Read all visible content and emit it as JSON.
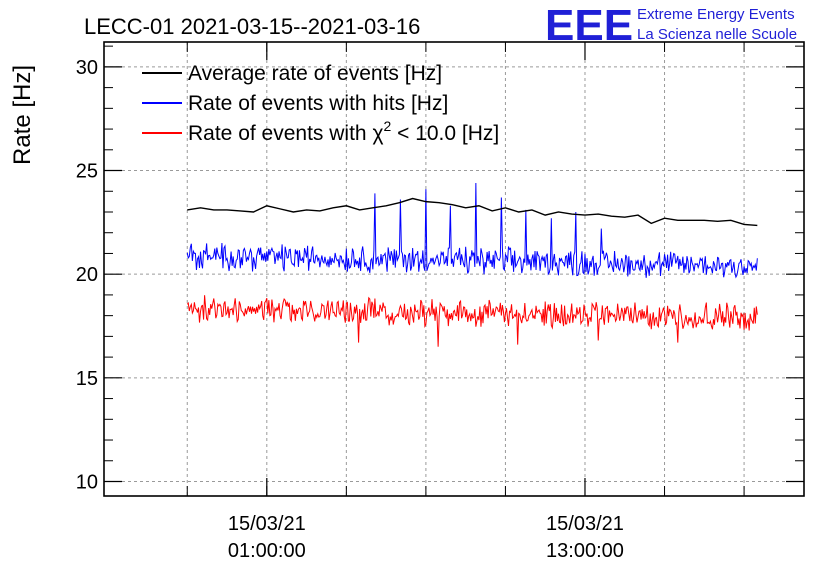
{
  "chart_data": {
    "type": "line",
    "title": "LECC-01 2021-03-15--2021-03-16",
    "ylabel": "Rate [Hz]",
    "xlabel": "",
    "ylim": [
      9.3,
      31.2
    ],
    "yticks": [
      10,
      15,
      20,
      25,
      30
    ],
    "grid": true,
    "legend_position": "top-left",
    "x_tick_labels": [
      {
        "date": "15/03/21",
        "time": "01:00:00"
      },
      {
        "date": "15/03/21",
        "time": "13:00:00"
      }
    ],
    "series": [
      {
        "name": "Average rate of events [Hz]",
        "color": "#000000",
        "x_hours": [
          -2.0,
          -1.5,
          -1.0,
          -0.5,
          0.0,
          0.5,
          1.0,
          1.5,
          2.0,
          2.5,
          3.0,
          3.5,
          4.0,
          4.5,
          5.0,
          5.5,
          6.0,
          6.5,
          7.0,
          7.5,
          8.0,
          8.5,
          9.0,
          9.5,
          10.0,
          10.5,
          11.0,
          11.5,
          12.0,
          12.5,
          13.0,
          13.5,
          14.0,
          14.5,
          15.0,
          15.5,
          16.0,
          16.5,
          17.0,
          17.5,
          18.0,
          18.5,
          19.0,
          19.5
        ],
        "values": [
          23.1,
          23.2,
          23.1,
          23.1,
          23.05,
          23.0,
          23.3,
          23.15,
          23.0,
          23.1,
          23.05,
          23.2,
          23.3,
          23.1,
          23.2,
          23.3,
          23.45,
          23.65,
          23.5,
          23.45,
          23.35,
          23.2,
          23.3,
          23.05,
          23.2,
          23.0,
          23.1,
          22.85,
          23.0,
          22.9,
          22.85,
          22.9,
          22.8,
          22.75,
          22.85,
          22.45,
          22.7,
          22.6,
          22.6,
          22.6,
          22.55,
          22.6,
          22.4,
          22.35
        ]
      },
      {
        "name": "Rate of events with hits [Hz]",
        "color": "#0000ff",
        "x_start_hours": -2.0,
        "x_end_hours": 19.5,
        "mean": 20.9,
        "mean_end": 20.4,
        "noise": 0.5,
        "samples": 560,
        "spike_values": [
          23.9,
          23.6,
          24.1,
          23.3,
          24.4,
          23.7,
          23.1,
          22.7,
          23.0,
          22.2
        ]
      },
      {
        "name": "Rate of events with χ² < 10.0 [Hz]",
        "color": "#ff0000",
        "x_start_hours": -2.0,
        "x_end_hours": 19.5,
        "mean": 18.3,
        "mean_end": 17.9,
        "noise": 0.5,
        "samples": 560,
        "dip_values": [
          16.7,
          16.5,
          16.6,
          16.8,
          16.7
        ]
      }
    ]
  },
  "legend": {
    "items": [
      {
        "label": "Average rate of events [Hz]",
        "color": "#000000"
      },
      {
        "label": "Rate of events with hits [Hz]",
        "color": "#0000ff"
      },
      {
        "label_prefix": "Rate of events with ",
        "chi": "χ",
        "sup": "2",
        "label_suffix": " < 10.0 [Hz]",
        "color": "#ff0000"
      }
    ]
  },
  "logo": {
    "mark": "EEE",
    "line1": "Extreme Energy Events",
    "line2": "La Scienza nelle Scuole"
  }
}
